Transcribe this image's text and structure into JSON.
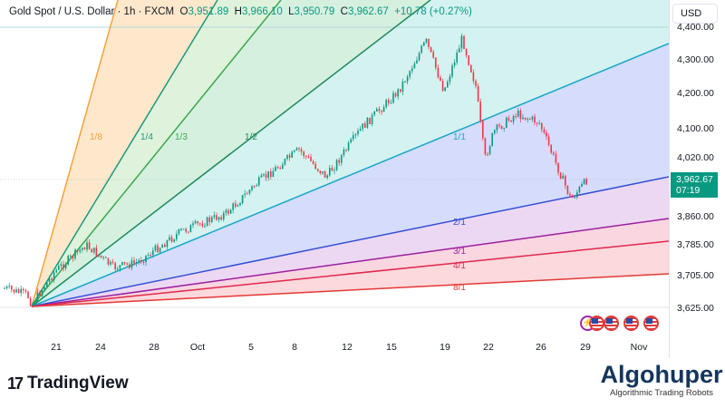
{
  "header": {
    "symbol": "Gold Spot / U.S. Dollar · 1h · FXCM",
    "o_label": "O",
    "o": "3,951.89",
    "h_label": "H",
    "h": "3,966.10",
    "l_label": "L",
    "l": "3,950.79",
    "c_label": "C",
    "c": "3,962.67",
    "change": "+10.78 (+0.27%)"
  },
  "price_axis": {
    "currency": "USD",
    "ticks": [
      "4,400.00",
      "4,300.00",
      "4,200.00",
      "4,100.00",
      "4,020.00",
      "3,860.00",
      "3,785.00",
      "3,705.00",
      "3,625.00"
    ],
    "current_price": "3,962.67",
    "countdown": "07:19",
    "current_color": "#089981"
  },
  "time_axis": [
    "21",
    "24",
    "28",
    "Oct",
    "5",
    "8",
    "12",
    "15",
    "19",
    "22",
    "26",
    "29",
    "Nov"
  ],
  "gann_fan": {
    "labels": [
      "1/8",
      "1/4",
      "1/3",
      "1/2",
      "1/1",
      "2/1",
      "3/1",
      "4/1",
      "8/1"
    ],
    "colors": [
      "#f7a23b",
      "#1c9a7a",
      "#3aa84a",
      "#1f8a5a",
      "#17a7c7",
      "#3450d6",
      "#9c1fa0",
      "#e0284d",
      "#e53935"
    ]
  },
  "chart_data": {
    "type": "candlestick",
    "close_path": [
      3680,
      3662,
      3637,
      3725,
      3800,
      3737,
      3750,
      3837,
      3887,
      3962,
      4062,
      3987,
      4125,
      4225,
      4362,
      4225,
      4370,
      4237,
      4037,
      4112,
      4162,
      4137,
      3925,
      3980
    ],
    "up_color": "#089981",
    "down_color": "#f23645"
  },
  "events": [
    "dividend-icon",
    "us-flag-icon",
    "us-flag-icon",
    "us-flag-icon",
    "us-flag-icon"
  ],
  "branding": {
    "tradingview": "TradingView",
    "algohuper": "Algohuper",
    "tagline": "Algorithmic Trading Robots"
  }
}
